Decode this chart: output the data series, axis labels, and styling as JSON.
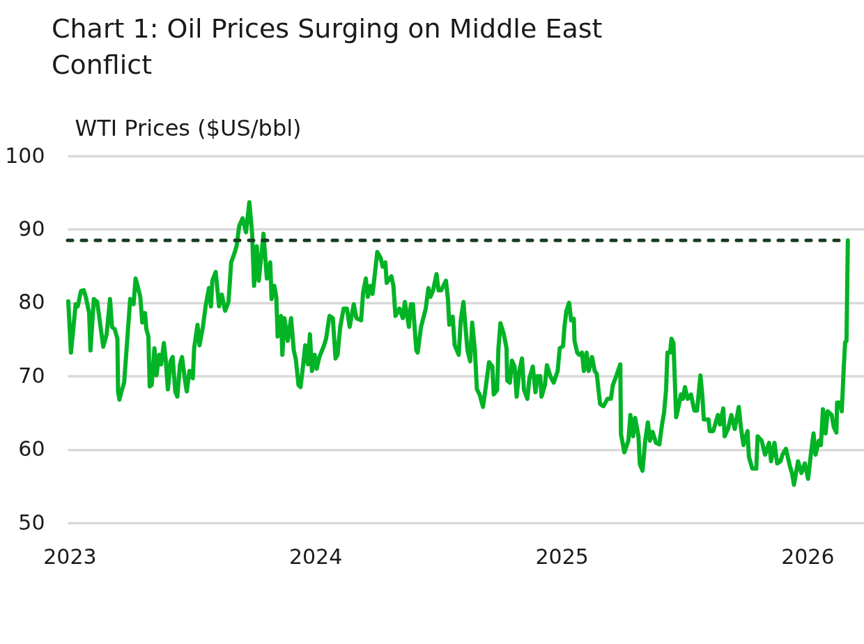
{
  "chart_data": {
    "type": "line",
    "title": "Chart 1: Oil Prices Surging on Middle East Conflict",
    "ylabel": "WTI Prices ($US/bbl)",
    "x": [
      "2022-12-30",
      "2023-01-03",
      "2023-01-10",
      "2023-01-13",
      "2023-01-18",
      "2023-01-22",
      "2023-01-25",
      "2023-01-30",
      "2023-02-01",
      "2023-02-06",
      "2023-02-11",
      "2023-02-16",
      "2023-02-20",
      "2023-02-25",
      "2023-03-02",
      "2023-03-05",
      "2023-03-09",
      "2023-03-13",
      "2023-03-14",
      "2023-03-16",
      "2023-03-19",
      "2023-03-23",
      "2023-03-26",
      "2023-04-01",
      "2023-04-06",
      "2023-04-09",
      "2023-04-12",
      "2023-04-16",
      "2023-04-19",
      "2023-04-23",
      "2023-04-25",
      "2023-04-28",
      "2023-04-30",
      "2023-05-03",
      "2023-05-07",
      "2023-05-10",
      "2023-05-14",
      "2023-05-17",
      "2023-05-21",
      "2023-05-24",
      "2023-05-27",
      "2023-05-31",
      "2023-06-03",
      "2023-06-07",
      "2023-06-10",
      "2023-06-14",
      "2023-06-17",
      "2023-06-21",
      "2023-06-24",
      "2023-06-28",
      "2023-07-03",
      "2023-07-05",
      "2023-07-10",
      "2023-07-13",
      "2023-07-18",
      "2023-07-22",
      "2023-07-27",
      "2023-07-30",
      "2023-08-01",
      "2023-08-06",
      "2023-08-11",
      "2023-08-15",
      "2023-08-20",
      "2023-08-25",
      "2023-08-29",
      "2023-09-03",
      "2023-09-06",
      "2023-09-10",
      "2023-09-15",
      "2023-09-20",
      "2023-09-25",
      "2023-09-29",
      "2023-10-02",
      "2023-10-06",
      "2023-10-09",
      "2023-10-16",
      "2023-10-21",
      "2023-10-26",
      "2023-10-28",
      "2023-11-01",
      "2023-11-04",
      "2023-11-06",
      "2023-11-11",
      "2023-11-13",
      "2023-11-16",
      "2023-11-21",
      "2023-11-26",
      "2023-11-30",
      "2023-12-03",
      "2023-12-07",
      "2023-12-10",
      "2023-12-14",
      "2023-12-17",
      "2023-12-21",
      "2023-12-24",
      "2023-12-27",
      "2023-12-31",
      "2024-01-03",
      "2024-01-07",
      "2024-01-14",
      "2024-01-17",
      "2024-01-22",
      "2024-01-27",
      "2024-01-31",
      "2024-02-03",
      "2024-02-07",
      "2024-02-12",
      "2024-02-17",
      "2024-02-21",
      "2024-02-27",
      "2024-03-02",
      "2024-03-09",
      "2024-03-12",
      "2024-03-16",
      "2024-03-19",
      "2024-03-23",
      "2024-03-26",
      "2024-03-29",
      "2024-04-02",
      "2024-04-07",
      "2024-04-10",
      "2024-04-14",
      "2024-04-16",
      "2024-04-23",
      "2024-04-26",
      "2024-04-29",
      "2024-05-05",
      "2024-05-10",
      "2024-05-13",
      "2024-05-17",
      "2024-05-19",
      "2024-05-22",
      "2024-05-25",
      "2024-05-30",
      "2024-06-01",
      "2024-06-06",
      "2024-06-13",
      "2024-06-17",
      "2024-06-20",
      "2024-06-24",
      "2024-06-29",
      "2024-07-02",
      "2024-07-06",
      "2024-07-13",
      "2024-07-16",
      "2024-07-18",
      "2024-07-23",
      "2024-07-26",
      "2024-08-01",
      "2024-08-04",
      "2024-08-08",
      "2024-08-11",
      "2024-08-14",
      "2024-08-18",
      "2024-08-21",
      "2024-08-25",
      "2024-08-28",
      "2024-09-01",
      "2024-09-06",
      "2024-09-10",
      "2024-09-15",
      "2024-09-20",
      "2024-09-22",
      "2024-09-27",
      "2024-09-29",
      "2024-10-02",
      "2024-10-07",
      "2024-10-11",
      "2024-10-12",
      "2024-10-16",
      "2024-10-19",
      "2024-10-23",
      "2024-10-26",
      "2024-10-30",
      "2024-11-03",
      "2024-11-06",
      "2024-11-11",
      "2024-11-14",
      "2024-11-19",
      "2024-11-23",
      "2024-11-26",
      "2024-11-30",
      "2024-12-02",
      "2024-12-07",
      "2024-12-10",
      "2024-12-15",
      "2024-12-20",
      "2024-12-26",
      "2024-12-29",
      "2025-01-03",
      "2025-01-05",
      "2025-01-08",
      "2025-01-12",
      "2025-01-15",
      "2025-01-19",
      "2025-01-20",
      "2025-01-24",
      "2025-01-27",
      "2025-01-31",
      "2025-02-03",
      "2025-02-07",
      "2025-02-10",
      "2025-02-15",
      "2025-02-19",
      "2025-02-22",
      "2025-02-27",
      "2025-03-04",
      "2025-03-10",
      "2025-03-15",
      "2025-03-18",
      "2025-03-23",
      "2025-03-29",
      "2025-03-30",
      "2025-04-04",
      "2025-04-10",
      "2025-04-13",
      "2025-04-17",
      "2025-04-20",
      "2025-04-25",
      "2025-04-27",
      "2025-05-01",
      "2025-05-05",
      "2025-05-09",
      "2025-05-12",
      "2025-05-16",
      "2025-05-21",
      "2025-05-26",
      "2025-05-30",
      "2025-06-02",
      "2025-06-05",
      "2025-06-07",
      "2025-06-11",
      "2025-06-13",
      "2025-06-16",
      "2025-06-20",
      "2025-06-23",
      "2025-06-27",
      "2025-06-30",
      "2025-07-03",
      "2025-07-07",
      "2025-07-12",
      "2025-07-17",
      "2025-07-21",
      "2025-07-26",
      "2025-07-29",
      "2025-07-31",
      "2025-08-07",
      "2025-08-09",
      "2025-08-14",
      "2025-08-21",
      "2025-08-24",
      "2025-08-29",
      "2025-08-31",
      "2025-09-05",
      "2025-09-10",
      "2025-09-15",
      "2025-09-21",
      "2025-09-24",
      "2025-09-28",
      "2025-10-04",
      "2025-10-06",
      "2025-10-11",
      "2025-10-17",
      "2025-10-19",
      "2025-10-25",
      "2025-10-30",
      "2025-11-05",
      "2025-11-08",
      "2025-11-13",
      "2025-11-17",
      "2025-11-22",
      "2025-11-25",
      "2025-11-30",
      "2025-12-06",
      "2025-12-09",
      "2025-12-12",
      "2025-12-18",
      "2025-12-23",
      "2025-12-28",
      "2026-01-02",
      "2026-01-06",
      "2026-01-10",
      "2026-01-13",
      "2026-01-18",
      "2026-01-21",
      "2026-01-24",
      "2026-01-28",
      "2026-01-31",
      "2026-02-06",
      "2026-02-09",
      "2026-02-13",
      "2026-02-14",
      "2026-02-18",
      "2026-02-21",
      "2026-02-24",
      "2026-02-26",
      "2026-02-28",
      "2026-03-02"
    ],
    "series": [
      {
        "color": "#02b326",
        "values": [
          80.2,
          73.2,
          79.8,
          79.5,
          81.6,
          81.7,
          80.8,
          78.6,
          73.5,
          80.5,
          80.1,
          76.7,
          74,
          75.7,
          80.5,
          76.7,
          76.4,
          75.1,
          67.9,
          66.8,
          67.9,
          69.1,
          72.9,
          80.5,
          79.8,
          83.3,
          82.3,
          80.8,
          77.3,
          78.6,
          76.4,
          75.4,
          68.6,
          68.8,
          73.8,
          70.1,
          72.9,
          71.6,
          74.5,
          72,
          68.2,
          72,
          72.6,
          67.9,
          67.2,
          71.6,
          72.6,
          69.7,
          67.9,
          70.7,
          69.7,
          73.8,
          77,
          74.2,
          76.7,
          79.5,
          82,
          79.5,
          83,
          84.2,
          79.5,
          81.1,
          78.9,
          80.1,
          85.5,
          86.8,
          87.7,
          90.5,
          91.5,
          89.6,
          93.7,
          89.6,
          82.3,
          87.7,
          83,
          89.4,
          83.3,
          85.5,
          80.5,
          82.3,
          80.8,
          75.4,
          78.2,
          72.9,
          77.9,
          74.8,
          77.9,
          73.5,
          72.3,
          68.8,
          68.5,
          71.6,
          74.2,
          71.6,
          75.7,
          70.7,
          72.9,
          71,
          72.6,
          74.2,
          75.1,
          78.2,
          77.9,
          72.4,
          72.9,
          76.7,
          79.2,
          79.2,
          76.7,
          79.8,
          77.9,
          77.6,
          81.4,
          83.3,
          80.8,
          82.3,
          81.2,
          83.6,
          86.9,
          86.1,
          84.9,
          85.5,
          82.7,
          83.6,
          82.3,
          78.2,
          79.2,
          77.9,
          80.1,
          77.9,
          76.7,
          79.8,
          79.8,
          73.5,
          73.2,
          76.7,
          79.2,
          82,
          80.8,
          81.7,
          83.9,
          81.7,
          81.7,
          83,
          80.5,
          77,
          78.1,
          74.2,
          72.9,
          77.6,
          80.1,
          76.7,
          73.5,
          72,
          77.3,
          73.5,
          68.2,
          67.5,
          65.8,
          68.4,
          71.9,
          71.3,
          67.5,
          68.1,
          73.8,
          77.2,
          75.7,
          73.8,
          69.4,
          69.1,
          72.1,
          71.3,
          67.2,
          70.7,
          72.4,
          68.1,
          66.9,
          69.7,
          71.3,
          67.8,
          70,
          70,
          67.2,
          68.8,
          71.5,
          70,
          69.1,
          70.7,
          73.8,
          74.1,
          76.7,
          78.9,
          80,
          77.6,
          77.8,
          74.8,
          73.2,
          72.9,
          73.2,
          70.7,
          73.2,
          70.7,
          72.6,
          70.7,
          70.3,
          66.2,
          65.9,
          66.9,
          66.9,
          68.8,
          70,
          71.6,
          62.1,
          59.6,
          61.2,
          64.7,
          61.8,
          64.3,
          61.8,
          58,
          57.1,
          61.2,
          63.7,
          61.2,
          62.4,
          60.9,
          60.7,
          63.4,
          65,
          68.1,
          73.2,
          73.2,
          75.1,
          74.5,
          64.4,
          65.6,
          67.5,
          66.9,
          68.5,
          66.9,
          67.5,
          65.3,
          65.3,
          70.1,
          67.2,
          64.1,
          64.1,
          62.5,
          62.5,
          64.7,
          63.4,
          65.6,
          61.8,
          62.8,
          64.7,
          62.8,
          65.8,
          63.1,
          60.6,
          62.5,
          59,
          57.4,
          57.4,
          61.8,
          61.2,
          59.3,
          60.9,
          58.4,
          60.9,
          58.1,
          58.4,
          59.3,
          60.1,
          57.7,
          56.8,
          55.2,
          58.4,
          56.8,
          58.1,
          56,
          59.3,
          62.2,
          59.3,
          61.2,
          60.6,
          65.5,
          62.2,
          65.2,
          64.7,
          63.1,
          62.3,
          66.4,
          66.4,
          65.2,
          71.3,
          74.6,
          74.8,
          88.5
        ]
      }
    ],
    "xlim": [
      "2022-12-29",
      "2026-03-26"
    ],
    "xticks": [
      "2023",
      "2024",
      "2025",
      "2026"
    ],
    "ylim": [
      50,
      100
    ],
    "yticks": [
      50,
      60,
      70,
      80,
      90,
      100
    ],
    "grid": "y",
    "ref_lines": [
      {
        "axis": "y",
        "value": 88.5,
        "color": "#173d22",
        "line_style": "dashed"
      }
    ]
  }
}
